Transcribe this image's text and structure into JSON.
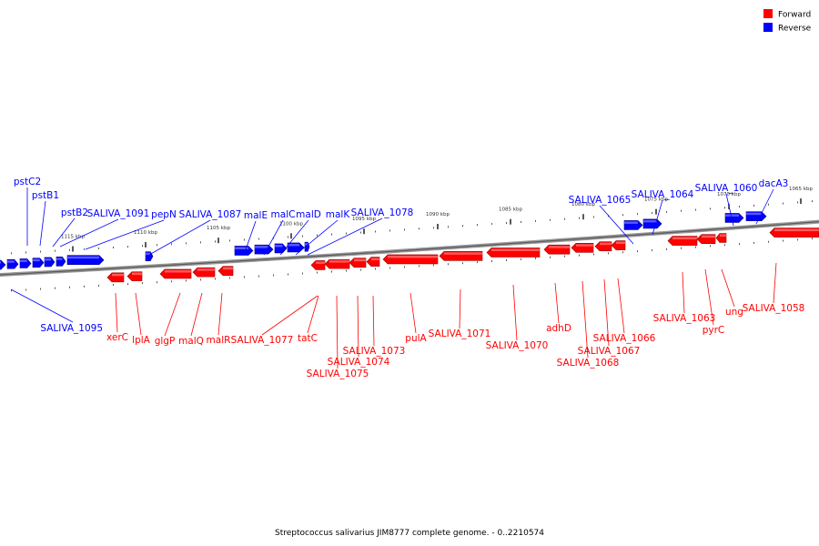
{
  "caption": "Streptococcus salivarius JIM8777 complete genome. - 0..2210574",
  "legend": [
    {
      "label": "Forward",
      "color": "#ff0000"
    },
    {
      "label": "Reverse",
      "color": "#0000ff"
    }
  ],
  "colors": {
    "forward": "#ff0000",
    "reverse": "#0000ff",
    "backbone": "#888888"
  },
  "scale_labels": [
    "1115 kbp",
    "1110 kbp",
    "1105 kbp",
    "1100 kbp",
    "1095 kbp",
    "1090 kbp",
    "1085 kbp",
    "1080 kbp",
    "1075 kbp",
    "1070 kbp",
    "1065 kbp"
  ],
  "reverse_genes": [
    "pstC2",
    "pstB1",
    "pstB2",
    "SALIVA_1091",
    "pepN",
    "SALIVA_1087",
    "malE",
    "malC",
    "malD",
    "malK",
    "SALIVA_1078",
    "SALIVA_1065",
    "SALIVA_1064",
    "SALIVA_1060",
    "dacA3",
    "SALIVA_1095"
  ],
  "forward_genes": [
    "xerC",
    "lplA",
    "glgP",
    "malQ",
    "malR",
    "SALIVA_1077",
    "tatC",
    "SALIVA_1075",
    "SALIVA_1074",
    "SALIVA_1073",
    "pulA",
    "SALIVA_1071",
    "SALIVA_1070",
    "adhD",
    "SALIVA_1068",
    "SALIVA_1067",
    "SALIVA_1066",
    "SALIVA_1063",
    "pyrC",
    "ung",
    "SALIVA_1058"
  ]
}
